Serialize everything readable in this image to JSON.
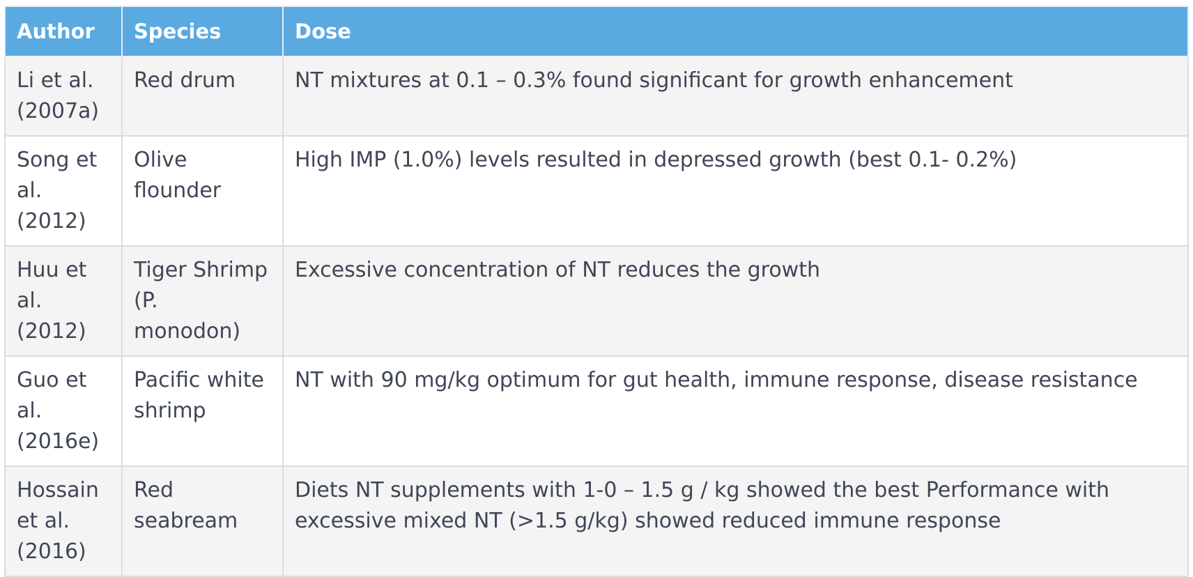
{
  "table": {
    "headers": {
      "author": "Author",
      "species": "Species",
      "dose": "Dose"
    },
    "rows": [
      {
        "author": "Li et al. (2007a)",
        "species": "Red drum",
        "dose": "NT mixtures at 0.1 – 0.3% found significant for growth enhancement"
      },
      {
        "author": "Song et al. (2012)",
        "species": "Olive flounder",
        "dose": "High IMP (1.0%) levels resulted in depressed growth (best 0.1- 0.2%)"
      },
      {
        "author": "Huu et al. (2012)",
        "species": "Tiger Shrimp (P. monodon)",
        "dose": "Excessive concentration of NT reduces the growth"
      },
      {
        "author": "Guo et al. (2016e)",
        "species": "Pacific white shrimp",
        "dose": "NT with 90 mg/kg optimum for gut health, immune response, disease resistance"
      },
      {
        "author": "Hossain et al. (2016)",
        "species": "Red seabream",
        "dose": "Diets NT supplements with 1-0 – 1.5 g / kg showed the best Performance with excessive mixed NT (>1.5 g/kg) showed reduced immune response"
      }
    ]
  },
  "colors": {
    "header_bg": "#5aa9e0",
    "header_text": "#ffffff",
    "body_text": "#3f4655",
    "row_alt_bg": "#f4f4f4",
    "border": "#dcdcdc"
  }
}
